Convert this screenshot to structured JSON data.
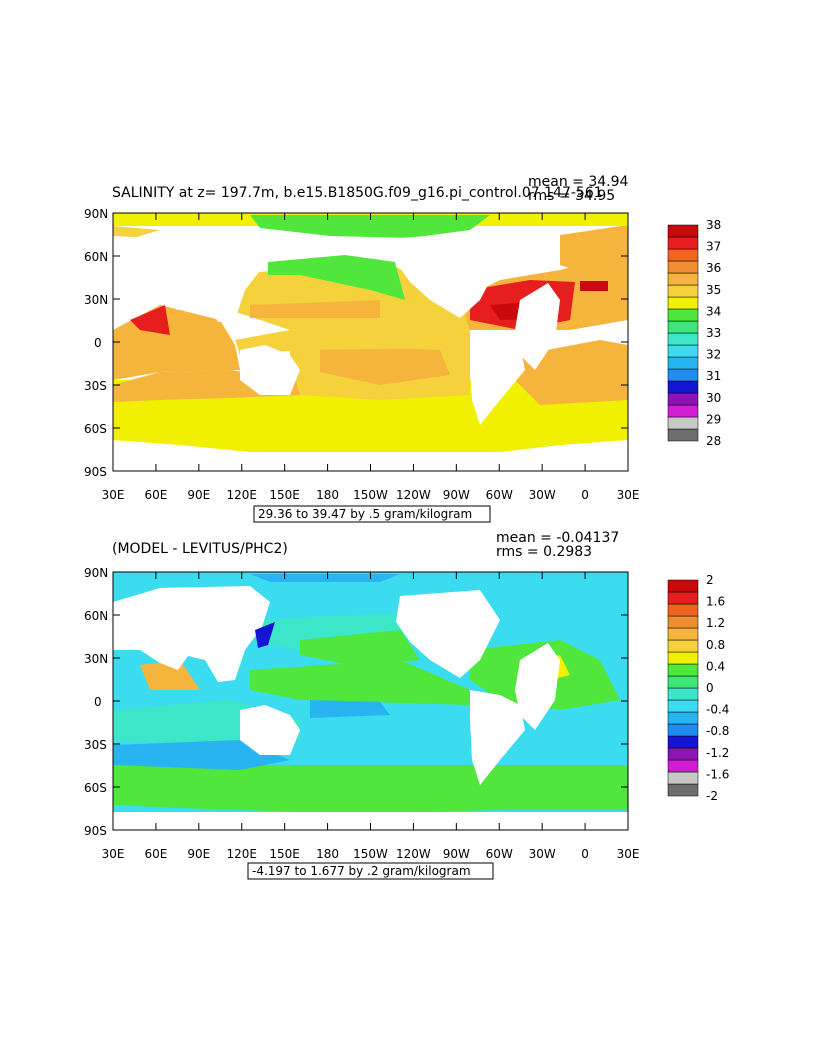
{
  "panels": [
    {
      "title": "SALINITY at z= 197.7m, b.e15.B1850G.f09_g16.pi_control.07 147-561",
      "mean": "mean = 34.94",
      "rms": "rms = 34.95",
      "range_label": "29.36 to 39.47 by .5 gram/kilogram",
      "lat_labels": [
        "90N",
        "60N",
        "30N",
        "0",
        "30S",
        "60S",
        "90S"
      ],
      "lon_labels": [
        "30E",
        "60E",
        "90E",
        "120E",
        "150E",
        "180",
        "150W",
        "120W",
        "90W",
        "60W",
        "30W",
        "0",
        "30E"
      ],
      "colorbar": {
        "colors": [
          "#6e6e6e",
          "#c8c8c8",
          "#d21ed2",
          "#8c14b4",
          "#1414d2",
          "#1e8cf0",
          "#28b4f0",
          "#3cdcf0",
          "#3ce6c8",
          "#3ce678",
          "#50e63c",
          "#f0f000",
          "#f5d23c",
          "#f5b43c",
          "#f08c32",
          "#f0641e",
          "#e61e1e",
          "#c80a0a"
        ],
        "labels": [
          "28",
          "29",
          "30",
          "31",
          "32",
          "33",
          "34",
          "35",
          "36",
          "37",
          "38"
        ]
      }
    },
    {
      "title": "(MODEL - LEVITUS/PHC2)",
      "mean": "mean = -0.04137",
      "rms": "rms = 0.2983",
      "range_label": "-4.197 to 1.677 by .2 gram/kilogram",
      "lat_labels": [
        "90N",
        "60N",
        "30N",
        "0",
        "30S",
        "60S",
        "90S"
      ],
      "lon_labels": [
        "30E",
        "60E",
        "90E",
        "120E",
        "150E",
        "180",
        "150W",
        "120W",
        "90W",
        "60W",
        "30W",
        "0",
        "30E"
      ],
      "colorbar": {
        "colors": [
          "#6e6e6e",
          "#c8c8c8",
          "#d21ed2",
          "#8c14b4",
          "#1414d2",
          "#1e8cf0",
          "#28b4f0",
          "#3cdcf0",
          "#3ce6c8",
          "#3ce678",
          "#50e63c",
          "#f0f000",
          "#f5d23c",
          "#f5b43c",
          "#f08c32",
          "#f0641e",
          "#e61e1e",
          "#c80a0a"
        ],
        "labels": [
          "2",
          "1.6",
          "1.2",
          "0.8",
          "0.4",
          "0",
          "-0.4",
          "-0.8",
          "-1.2",
          "-1.6",
          "-2"
        ]
      }
    }
  ]
}
